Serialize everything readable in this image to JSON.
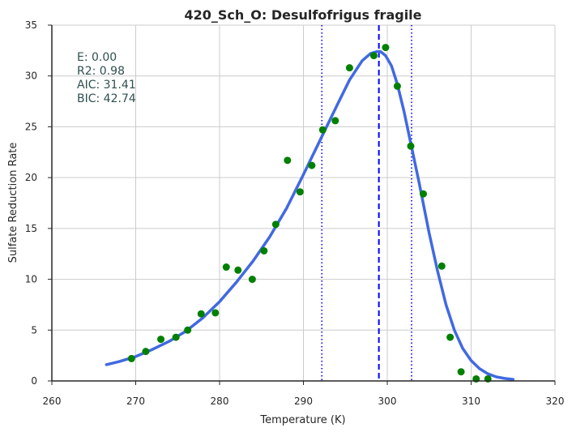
{
  "chart_data": {
    "type": "scatter",
    "title": "420_Sch_O: Desulfofrigus fragile",
    "xlabel": "Temperature (K)",
    "ylabel": "Sulfate Reduction Rate",
    "xlim": [
      260,
      320
    ],
    "ylim": [
      0,
      35
    ],
    "xticks": [
      "260",
      "270",
      "280",
      "290",
      "300",
      "310",
      "320"
    ],
    "yticks": [
      "0",
      "5",
      "10",
      "15",
      "20",
      "25",
      "30",
      "35"
    ],
    "grid": true,
    "annotations": [
      "E:  0.00",
      "R2:  0.98",
      "AIC: 31.41",
      "BIC: 42.74"
    ],
    "colors": {
      "points": "#008000",
      "fit": "#4169e1",
      "vline": "#0000ff",
      "grid": "#cccccc",
      "axis": "#262626"
    },
    "points": {
      "x": [
        269.5,
        271.2,
        273.0,
        274.8,
        276.2,
        277.8,
        279.5,
        280.8,
        282.2,
        283.9,
        285.3,
        286.7,
        288.1,
        289.6,
        291.0,
        292.3,
        293.8,
        295.5,
        298.4,
        299.8,
        301.2,
        302.8,
        304.3,
        306.5,
        307.5,
        308.8,
        310.6,
        312.0
      ],
      "y": [
        2.2,
        2.9,
        4.1,
        4.3,
        5.0,
        6.6,
        6.7,
        11.2,
        10.9,
        10.0,
        12.8,
        15.4,
        21.7,
        18.6,
        21.2,
        24.7,
        25.6,
        30.8,
        32.0,
        32.8,
        29.0,
        23.1,
        18.4,
        11.3,
        4.3,
        0.9,
        0.2,
        0.2
      ]
    },
    "fit_curve": {
      "x": [
        266.5,
        268,
        270,
        272,
        274,
        276,
        278,
        280,
        282,
        284,
        286,
        288,
        290,
        292,
        294,
        295.5,
        297,
        298,
        298.8,
        299.2,
        299.8,
        300.5,
        301.2,
        302,
        302.9,
        303.8,
        305,
        306,
        307,
        308,
        309,
        310,
        311,
        312,
        313,
        314,
        315
      ],
      "y": [
        1.6,
        1.9,
        2.4,
        3.1,
        3.9,
        4.9,
        6.2,
        7.8,
        9.7,
        11.8,
        14.2,
        17.0,
        20.3,
        23.7,
        27.1,
        29.6,
        31.5,
        32.2,
        32.4,
        32.4,
        32.0,
        31.0,
        29.2,
        26.5,
        23.0,
        19.5,
        14.5,
        10.8,
        7.5,
        5.0,
        3.2,
        2.0,
        1.2,
        0.7,
        0.4,
        0.25,
        0.15
      ]
    },
    "vlines": [
      {
        "x": 299.0,
        "style": "dashed"
      },
      {
        "x": 292.2,
        "style": "dotted"
      },
      {
        "x": 302.9,
        "style": "dotted"
      }
    ]
  }
}
